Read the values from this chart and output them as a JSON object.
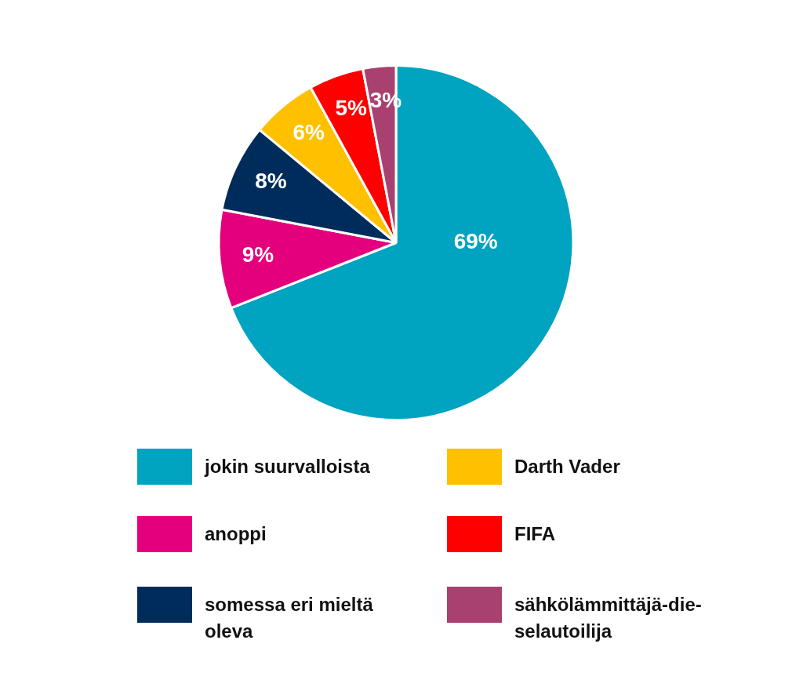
{
  "chart_data": {
    "type": "pie",
    "categories": [
      "jokin suurvalloista",
      "anoppi",
      "somessa eri mieltä oleva",
      "Darth Vader",
      "FIFA",
      "sähkölämmittäjä-die-selautoilija"
    ],
    "values": [
      69,
      9,
      8,
      6,
      5,
      3
    ],
    "colors": [
      "#00a3c0",
      "#e4007c",
      "#002c5c",
      "#ffc000",
      "#ff0000",
      "#a8416f"
    ],
    "value_labels": [
      "69%",
      "9%",
      "8%",
      "6%",
      "5%",
      "3%"
    ],
    "legend": "bottom"
  }
}
